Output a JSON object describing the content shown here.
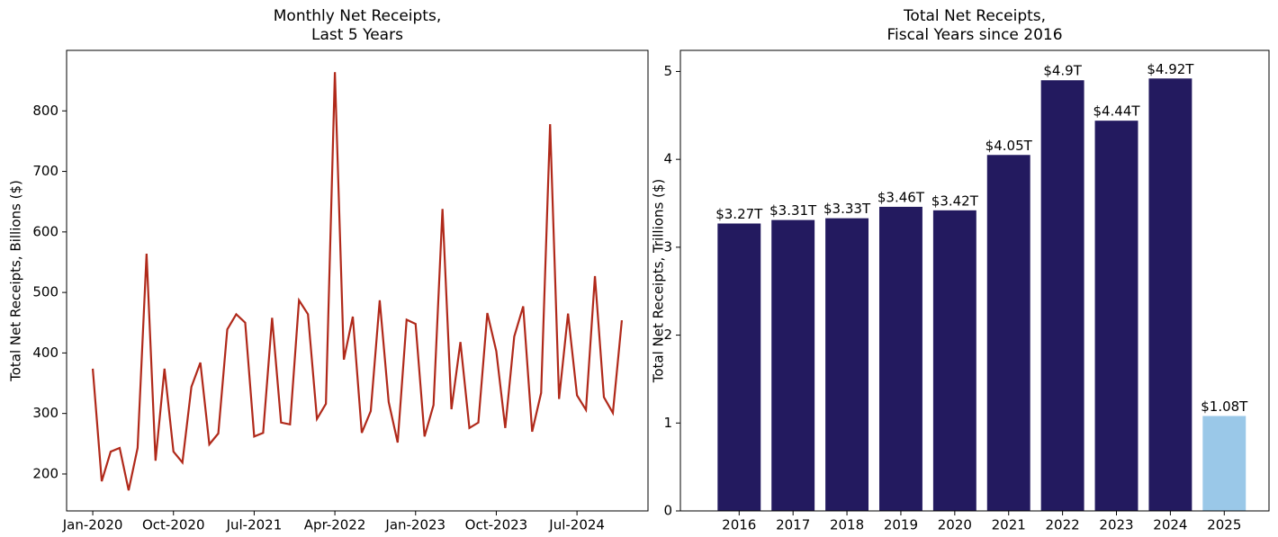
{
  "chart_data": [
    {
      "type": "line",
      "title": [
        "Monthly Net Receipts,",
        "Last 5 Years"
      ],
      "y_label": "Total Net Receipts, Billions ($)",
      "categories": [
        "Jan-2020",
        null,
        null,
        null,
        null,
        null,
        null,
        null,
        null,
        "Oct-2020",
        null,
        null,
        null,
        null,
        null,
        null,
        null,
        null,
        "Jul-2021",
        null,
        null,
        null,
        null,
        null,
        null,
        null,
        null,
        "Apr-2022",
        null,
        null,
        null,
        null,
        null,
        null,
        null,
        null,
        "Jan-2023",
        null,
        null,
        null,
        null,
        null,
        null,
        null,
        null,
        "Oct-2023",
        null,
        null,
        null,
        null,
        null,
        null,
        null,
        null,
        "Jul-2024",
        null,
        null,
        null,
        null,
        null
      ],
      "series": [
        {
          "name": "Net Receipts",
          "color": "#b0291a",
          "values": [
            374,
            188,
            237,
            243,
            173,
            243,
            564,
            222,
            374,
            237,
            219,
            344,
            384,
            249,
            267,
            439,
            464,
            450,
            262,
            268,
            458,
            285,
            282,
            487,
            464,
            291,
            316,
            864,
            389,
            460,
            268,
            304,
            487,
            319,
            252,
            455,
            448,
            262,
            314,
            638,
            307,
            418,
            276,
            285,
            466,
            403,
            276,
            427,
            477,
            270,
            334,
            778,
            324,
            465,
            330,
            306,
            527,
            327,
            301,
            454
          ]
        }
      ],
      "ylim": [
        139,
        900
      ],
      "yticks": [
        200,
        300,
        400,
        500,
        600,
        700,
        800
      ]
    },
    {
      "type": "bar",
      "title": [
        "Total Net Receipts,",
        "Fiscal Years since 2016"
      ],
      "y_label": "Total Net Receipts, Trillions ($)",
      "categories": [
        "2016",
        "2017",
        "2018",
        "2019",
        "2020",
        "2021",
        "2022",
        "2023",
        "2024",
        "2025"
      ],
      "values": [
        3.27,
        3.31,
        3.33,
        3.46,
        3.42,
        4.05,
        4.9,
        4.44,
        4.92,
        1.08
      ],
      "value_labels": [
        "$3.27T",
        "$3.31T",
        "$3.33T",
        "$3.46T",
        "$3.42T",
        "$4.05T",
        "$4.9T",
        "$4.44T",
        "$4.92T",
        "$1.08T"
      ],
      "colors": [
        "#231a5f",
        "#231a5f",
        "#231a5f",
        "#231a5f",
        "#231a5f",
        "#231a5f",
        "#231a5f",
        "#231a5f",
        "#231a5f",
        "#9ac8e8"
      ],
      "ylim": [
        0,
        5.24
      ],
      "yticks": [
        0,
        1,
        2,
        3,
        4,
        5
      ]
    }
  ]
}
